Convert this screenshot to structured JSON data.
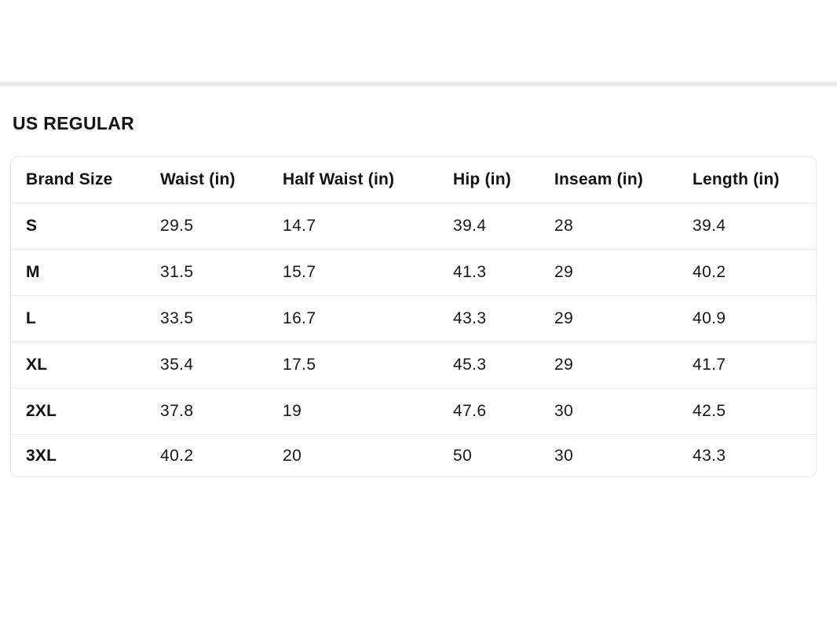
{
  "section": {
    "title": "US REGULAR"
  },
  "size_chart": {
    "columns": [
      "Brand Size",
      "Waist (in)",
      "Half Waist (in)",
      "Hip (in)",
      "Inseam (in)",
      "Length (in)"
    ],
    "rows": [
      {
        "size": "S",
        "waist": "29.5",
        "half_waist": "14.7",
        "hip": "39.4",
        "inseam": "28",
        "length": "39.4"
      },
      {
        "size": "M",
        "waist": "31.5",
        "half_waist": "15.7",
        "hip": "41.3",
        "inseam": "29",
        "length": "40.2"
      },
      {
        "size": "L",
        "waist": "33.5",
        "half_waist": "16.7",
        "hip": "43.3",
        "inseam": "29",
        "length": "40.9"
      },
      {
        "size": "XL",
        "waist": "35.4",
        "half_waist": "17.5",
        "hip": "45.3",
        "inseam": "29",
        "length": "41.7"
      },
      {
        "size": "2XL",
        "waist": "37.8",
        "half_waist": "19",
        "hip": "47.6",
        "inseam": "30",
        "length": "42.5"
      },
      {
        "size": "3XL",
        "waist": "40.2",
        "half_waist": "20",
        "hip": "50",
        "inseam": "30",
        "length": "43.3"
      }
    ]
  },
  "colors": {
    "background": "#ffffff",
    "text": "#0f1111",
    "card_border": "#e4e6e6",
    "row_divider": "#e9e9e9",
    "top_divider": "#e6e6e6"
  }
}
